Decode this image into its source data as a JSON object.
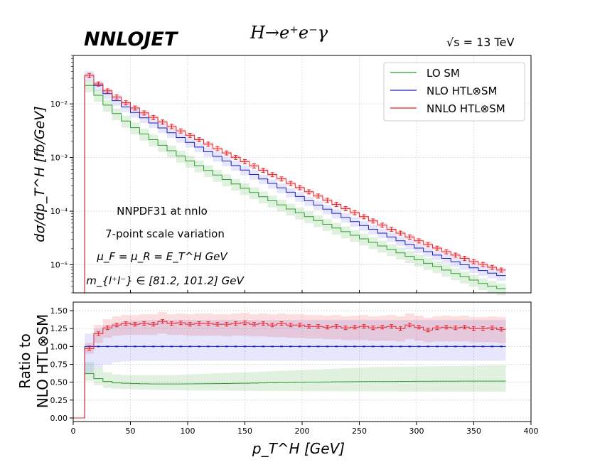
{
  "header": {
    "logo": "NNLOJET",
    "process": "H→e⁺e⁻γ",
    "energy": "√s = 13 TeV"
  },
  "annotations": [
    "NNPDF31 at nnlo",
    "7-point scale variation",
    "μ_F = μ_R = E_T^H GeV",
    "m_{l⁺l⁻} ∈ [81.2, 101.2] GeV"
  ],
  "colors": {
    "lo": "#2ca02c",
    "nlo": "#1f1fbf",
    "nnlo": "#e8232a"
  },
  "chart_data": [
    {
      "type": "line",
      "panel": "main",
      "ylabel": "dσ/dp_T^H [fb/GeV]",
      "yscale": "log",
      "ylim": [
        3e-06,
        0.08
      ],
      "xlim": [
        0,
        400
      ],
      "ytick_labels": [
        "10⁻⁵",
        "10⁻⁴",
        "10⁻³",
        "10⁻²"
      ],
      "ytick_values": [
        1e-05,
        0.0001,
        0.001,
        0.01
      ],
      "grid": true,
      "legend_position": "top-right",
      "bin_width": 8,
      "x_start": 10,
      "series": [
        {
          "name": "LO SM",
          "key": "lo",
          "values": [
            0.022,
            0.0145,
            0.0095,
            0.0066,
            0.0048,
            0.0036,
            0.00275,
            0.00215,
            0.00169,
            0.00134,
            0.00107,
            0.000865,
            0.000704,
            0.000575,
            0.000472,
            0.000389,
            0.000322,
            0.000267,
            0.000223,
            0.000186,
            0.000156,
            0.000131,
            0.00011,
            9.3e-05,
            7.9e-05,
            6.7e-05,
            5.7e-05,
            4.85e-05,
            4.15e-05,
            3.55e-05,
            3.05e-05,
            2.62e-05,
            2.25e-05,
            1.94e-05,
            1.67e-05,
            1.44e-05,
            1.24e-05,
            1.07e-05,
            9.3e-06,
            8e-06,
            6.9e-06,
            6e-06,
            5.2e-06,
            4.5e-06,
            4e-06,
            3.6e-06
          ],
          "band": 0.25
        },
        {
          "name": "NLO HTL⊗SM",
          "key": "nlo",
          "values": [
            0.034,
            0.022,
            0.0155,
            0.0115,
            0.0088,
            0.0069,
            0.0055,
            0.0044,
            0.00356,
            0.0029,
            0.00236,
            0.00192,
            0.00157,
            0.00128,
            0.00105,
            0.000862,
            0.000709,
            0.000584,
            0.000482,
            0.000398,
            0.000329,
            0.000272,
            0.000226,
            0.000188,
            0.000156,
            0.00013,
            0.000109,
            9.1e-05,
            7.6e-05,
            6.4e-05,
            5.4e-05,
            4.6e-05,
            3.9e-05,
            3.3e-05,
            2.8e-05,
            2.4e-05,
            2.05e-05,
            1.76e-05,
            1.52e-05,
            1.32e-05,
            1.14e-05,
            1e-05,
            8.8e-06,
            7.8e-06,
            7e-06,
            6.3e-06
          ],
          "band": 0.2
        },
        {
          "name": "NNLO HTL⊗SM",
          "key": "nnlo",
          "values": [
            0.034,
            0.0235,
            0.0175,
            0.0135,
            0.0105,
            0.0084,
            0.0068,
            0.0056,
            0.0046,
            0.0038,
            0.00314,
            0.0026,
            0.00215,
            0.00178,
            0.00147,
            0.00122,
            0.00101,
            0.00084,
            0.0007,
            0.00058,
            0.00048,
            0.0004,
            0.00033,
            0.000275,
            0.00023,
            0.000192,
            0.00016,
            0.000134,
            0.000112,
            9.4e-05,
            7.9e-05,
            6.6e-05,
            5.5e-05,
            4.6e-05,
            3.9e-05,
            3.3e-05,
            2.8e-05,
            2.4e-05,
            2.05e-05,
            1.76e-05,
            1.52e-05,
            1.32e-05,
            1.15e-05,
            1.02e-05,
            9e-06,
            8e-06
          ],
          "band": 0.08
        }
      ]
    },
    {
      "type": "line",
      "panel": "ratio",
      "xlabel": "p_T^H [GeV]",
      "ylabel_lines": [
        "Ratio to",
        "NLO HTL⊗SM"
      ],
      "ylim": [
        -0.05,
        1.62
      ],
      "xlim": [
        0,
        400
      ],
      "xtick_values": [
        0,
        50,
        100,
        150,
        200,
        250,
        300,
        350,
        400
      ],
      "xtick_labels": [
        "0",
        "50",
        "100",
        "150",
        "200",
        "250",
        "300",
        "350",
        "400"
      ],
      "ytick_values": [
        0.0,
        0.25,
        0.5,
        0.75,
        1.0,
        1.25,
        1.5
      ],
      "ytick_labels": [
        "0.00",
        "0.25",
        "0.50",
        "0.75",
        "1.00",
        "1.25",
        "1.50"
      ],
      "grid": true,
      "bin_width": 8,
      "x_start": 10,
      "series": [
        {
          "key": "lo",
          "values": [
            0.62,
            0.55,
            0.51,
            0.49,
            0.485,
            0.48,
            0.478,
            0.476,
            0.475,
            0.475,
            0.476,
            0.477,
            0.478,
            0.479,
            0.48,
            0.482,
            0.484,
            0.486,
            0.488,
            0.49,
            0.492,
            0.494,
            0.496,
            0.498,
            0.5,
            0.502,
            0.503,
            0.505,
            0.507,
            0.508,
            0.509,
            0.51,
            0.51,
            0.511,
            0.512,
            0.512,
            0.513,
            0.513,
            0.514,
            0.514,
            0.514,
            0.515,
            0.515,
            0.515,
            0.515,
            0.515
          ],
          "band_lo": [
            0.52,
            0.46,
            0.42,
            0.41,
            0.405,
            0.4,
            0.395,
            0.392,
            0.39,
            0.388,
            0.386,
            0.385,
            0.384,
            0.383,
            0.382,
            0.381,
            0.38,
            0.38,
            0.379,
            0.378,
            0.378,
            0.377,
            0.376,
            0.376,
            0.375,
            0.375,
            0.374,
            0.374,
            0.373,
            0.373,
            0.372,
            0.372,
            0.371,
            0.371,
            0.37,
            0.37,
            0.37,
            0.369,
            0.369,
            0.369,
            0.368,
            0.368,
            0.368,
            0.368,
            0.367,
            0.367
          ],
          "band_hi": [
            0.78,
            0.7,
            0.64,
            0.61,
            0.6,
            0.6,
            0.6,
            0.6,
            0.6,
            0.6,
            0.605,
            0.61,
            0.615,
            0.62,
            0.625,
            0.63,
            0.635,
            0.64,
            0.645,
            0.65,
            0.655,
            0.66,
            0.665,
            0.67,
            0.675,
            0.68,
            0.685,
            0.69,
            0.695,
            0.7,
            0.705,
            0.71,
            0.712,
            0.714,
            0.716,
            0.718,
            0.72,
            0.722,
            0.724,
            0.726,
            0.728,
            0.73,
            0.732,
            0.734,
            0.735,
            0.735
          ]
        },
        {
          "key": "nlo",
          "values": [
            1,
            1,
            1,
            1,
            1,
            1,
            1,
            1,
            1,
            1,
            1,
            1,
            1,
            1,
            1,
            1,
            1,
            1,
            1,
            1,
            1,
            1,
            1,
            1,
            1,
            1,
            1,
            1,
            1,
            1,
            1,
            1,
            1,
            1,
            1,
            1,
            1,
            1,
            1,
            1,
            1,
            1,
            1,
            1,
            1,
            1
          ],
          "band_lo": [
            0.62,
            0.7,
            0.75,
            0.78,
            0.79,
            0.8,
            0.8,
            0.8,
            0.8,
            0.8,
            0.8,
            0.8,
            0.8,
            0.8,
            0.8,
            0.8,
            0.8,
            0.8,
            0.8,
            0.8,
            0.8,
            0.8,
            0.8,
            0.8,
            0.8,
            0.8,
            0.8,
            0.8,
            0.8,
            0.8,
            0.8,
            0.8,
            0.8,
            0.8,
            0.8,
            0.8,
            0.8,
            0.8,
            0.8,
            0.8,
            0.8,
            0.8,
            0.8,
            0.8,
            0.8,
            0.8
          ],
          "band_hi": [
            1.18,
            1.25,
            1.3,
            1.33,
            1.35,
            1.36,
            1.37,
            1.37,
            1.37,
            1.37,
            1.37,
            1.37,
            1.37,
            1.37,
            1.37,
            1.37,
            1.37,
            1.37,
            1.37,
            1.37,
            1.37,
            1.37,
            1.37,
            1.37,
            1.37,
            1.37,
            1.37,
            1.37,
            1.37,
            1.37,
            1.37,
            1.37,
            1.37,
            1.37,
            1.37,
            1.37,
            1.37,
            1.37,
            1.37,
            1.37,
            1.37,
            1.37,
            1.37,
            1.37,
            1.37,
            1.37
          ]
        },
        {
          "key": "nnlo",
          "values": [
            0.97,
            1.18,
            1.26,
            1.3,
            1.32,
            1.31,
            1.32,
            1.31,
            1.35,
            1.32,
            1.33,
            1.31,
            1.32,
            1.32,
            1.31,
            1.31,
            1.32,
            1.33,
            1.31,
            1.32,
            1.3,
            1.32,
            1.3,
            1.3,
            1.28,
            1.28,
            1.27,
            1.28,
            1.26,
            1.27,
            1.28,
            1.26,
            1.27,
            1.28,
            1.25,
            1.3,
            1.27,
            1.23,
            1.26,
            1.27,
            1.26,
            1.27,
            1.25,
            1.25,
            1.26,
            1.24
          ],
          "band_lo": [
            0.9,
            1.05,
            1.12,
            1.15,
            1.16,
            1.16,
            1.16,
            1.16,
            1.18,
            1.16,
            1.16,
            1.15,
            1.15,
            1.15,
            1.15,
            1.14,
            1.15,
            1.15,
            1.14,
            1.14,
            1.13,
            1.13,
            1.12,
            1.12,
            1.11,
            1.11,
            1.1,
            1.1,
            1.09,
            1.09,
            1.09,
            1.08,
            1.08,
            1.08,
            1.07,
            1.1,
            1.08,
            1.06,
            1.07,
            1.07,
            1.07,
            1.07,
            1.06,
            1.06,
            1.06,
            1.05
          ],
          "band_hi": [
            1.05,
            1.3,
            1.38,
            1.42,
            1.44,
            1.44,
            1.45,
            1.45,
            1.48,
            1.45,
            1.46,
            1.45,
            1.46,
            1.46,
            1.45,
            1.45,
            1.46,
            1.47,
            1.45,
            1.46,
            1.45,
            1.46,
            1.45,
            1.45,
            1.44,
            1.44,
            1.43,
            1.44,
            1.42,
            1.43,
            1.44,
            1.42,
            1.43,
            1.44,
            1.42,
            1.46,
            1.43,
            1.4,
            1.42,
            1.43,
            1.42,
            1.43,
            1.41,
            1.41,
            1.42,
            1.41
          ]
        }
      ]
    }
  ]
}
